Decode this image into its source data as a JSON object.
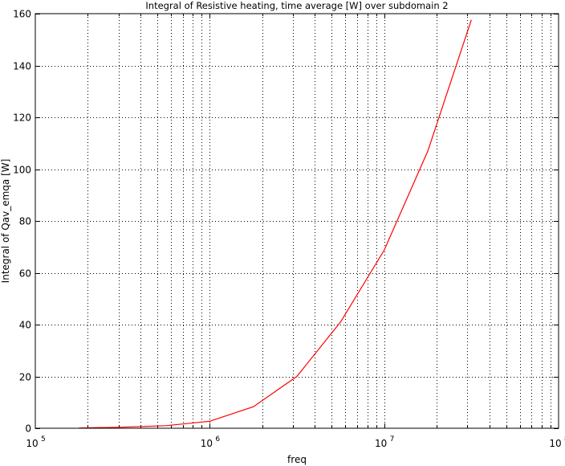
{
  "chart_data": {
    "type": "line",
    "title": "Integral of Resistive heating, time average [W] over subdomain 2",
    "xlabel": "freq",
    "ylabel": "Integral of Qav_emqa [W]",
    "xscale": "log",
    "xlim": [
      100000,
      100000000
    ],
    "ylim": [
      0,
      160
    ],
    "grid": true,
    "xticks": [
      {
        "base": "10",
        "exp": "5",
        "value": 100000
      },
      {
        "base": "10",
        "exp": "6",
        "value": 1000000
      },
      {
        "base": "10",
        "exp": "7",
        "value": 10000000
      },
      {
        "base": "10",
        "exp": "8",
        "value": 100000000
      }
    ],
    "yticks": [
      0,
      20,
      40,
      60,
      80,
      100,
      120,
      140,
      160
    ],
    "series": [
      {
        "color": "#ff0000",
        "x": [
          178000,
          316000,
          562000,
          1000000,
          1780000,
          3160000,
          5620000,
          10000000,
          17800000,
          31600000
        ],
        "y": [
          0.1,
          0.4,
          1.0,
          2.7,
          8.3,
          20.0,
          41.0,
          68.7,
          107.0,
          157.6
        ]
      }
    ]
  }
}
